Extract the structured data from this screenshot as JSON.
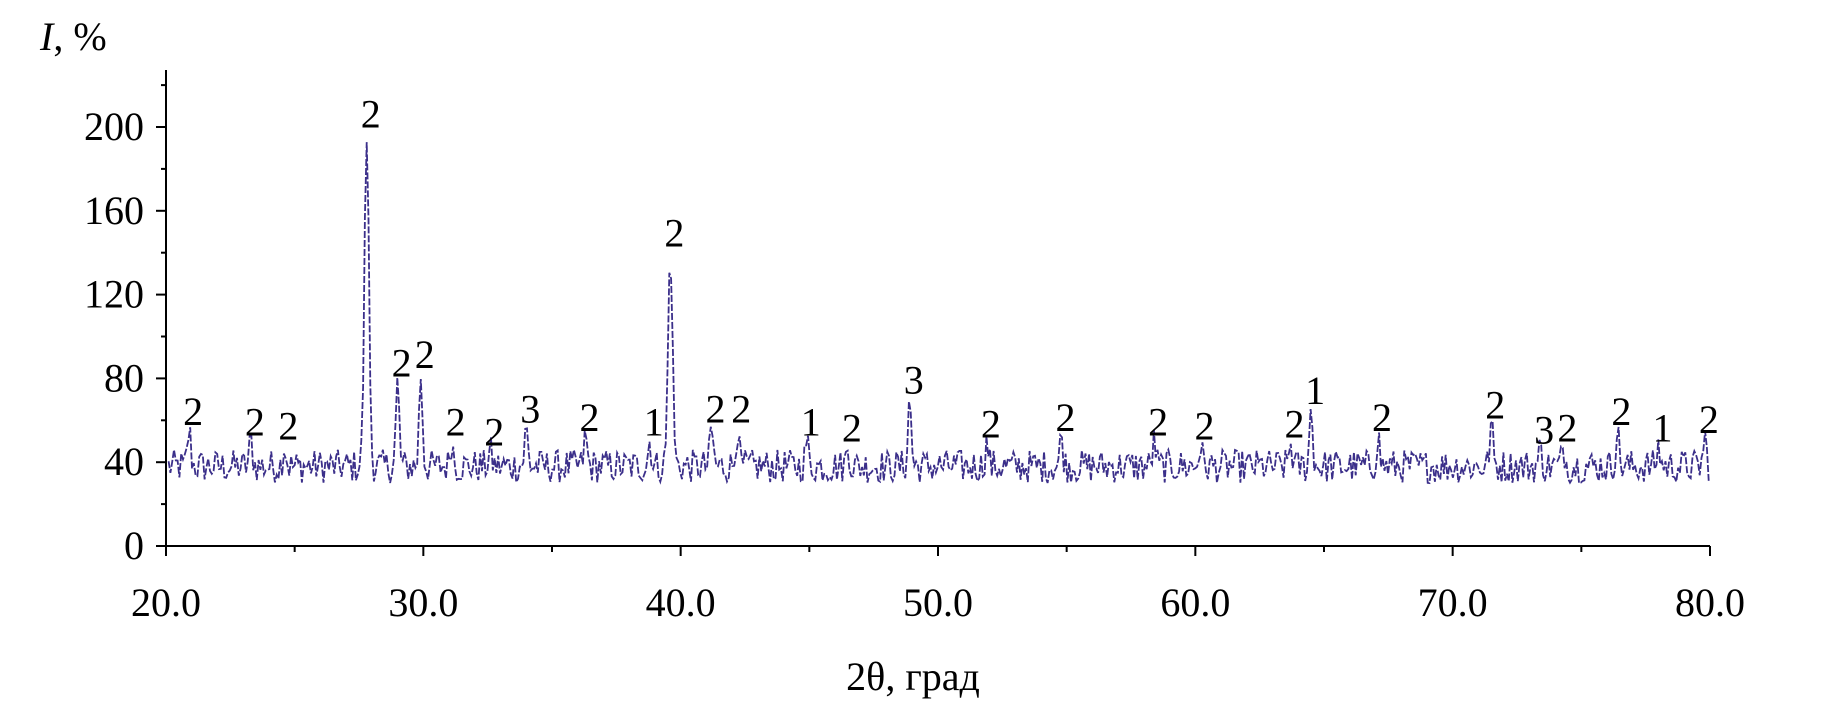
{
  "chart_data": {
    "type": "line",
    "title": "",
    "xlabel": "2θ, град",
    "ylabel_italic": "I",
    "ylabel_rest": ", %",
    "xlim": [
      20,
      80
    ],
    "ylim": [
      0,
      220
    ],
    "x_ticks": [
      20,
      30,
      40,
      50,
      60,
      70,
      80
    ],
    "x_tick_labels": [
      "20.0",
      "30.0",
      "40.0",
      "50.0",
      "60.0",
      "70.0",
      "80.0"
    ],
    "y_ticks": [
      0,
      40,
      80,
      120,
      160,
      200
    ],
    "y_tick_labels": [
      "0",
      "40",
      "80",
      "120",
      "160",
      "200"
    ],
    "grid": false,
    "legend": "none",
    "line_color": "#3b2f8a",
    "baseline": 38,
    "peaks": [
      {
        "x": 20.9,
        "y": 55,
        "label": "2"
      },
      {
        "x": 23.3,
        "y": 50,
        "label": "2"
      },
      {
        "x": 24.6,
        "y": 48,
        "label": "2"
      },
      {
        "x": 27.8,
        "y": 197,
        "label": "2"
      },
      {
        "x": 29.0,
        "y": 78,
        "label": "2"
      },
      {
        "x": 29.9,
        "y": 82,
        "label": "2"
      },
      {
        "x": 31.1,
        "y": 50,
        "label": "2"
      },
      {
        "x": 32.6,
        "y": 45,
        "label": "2"
      },
      {
        "x": 34.0,
        "y": 56,
        "label": "3"
      },
      {
        "x": 36.3,
        "y": 52,
        "label": "2"
      },
      {
        "x": 38.8,
        "y": 50,
        "label": "1"
      },
      {
        "x": 39.6,
        "y": 140,
        "label": "2"
      },
      {
        "x": 41.2,
        "y": 56,
        "label": "2"
      },
      {
        "x": 42.2,
        "y": 56,
        "label": "2"
      },
      {
        "x": 44.9,
        "y": 50,
        "label": "1"
      },
      {
        "x": 46.5,
        "y": 47,
        "label": "2"
      },
      {
        "x": 48.9,
        "y": 70,
        "label": "3"
      },
      {
        "x": 51.9,
        "y": 49,
        "label": "2"
      },
      {
        "x": 54.8,
        "y": 52,
        "label": "2"
      },
      {
        "x": 58.4,
        "y": 50,
        "label": "2"
      },
      {
        "x": 60.2,
        "y": 48,
        "label": "2"
      },
      {
        "x": 63.7,
        "y": 49,
        "label": "2"
      },
      {
        "x": 64.5,
        "y": 65,
        "label": "1"
      },
      {
        "x": 67.1,
        "y": 52,
        "label": "2"
      },
      {
        "x": 71.5,
        "y": 58,
        "label": "2"
      },
      {
        "x": 73.4,
        "y": 46,
        "label": "3"
      },
      {
        "x": 74.3,
        "y": 47,
        "label": "2"
      },
      {
        "x": 76.4,
        "y": 55,
        "label": "2"
      },
      {
        "x": 78.0,
        "y": 47,
        "label": "1"
      },
      {
        "x": 79.8,
        "y": 51,
        "label": "2"
      }
    ]
  }
}
